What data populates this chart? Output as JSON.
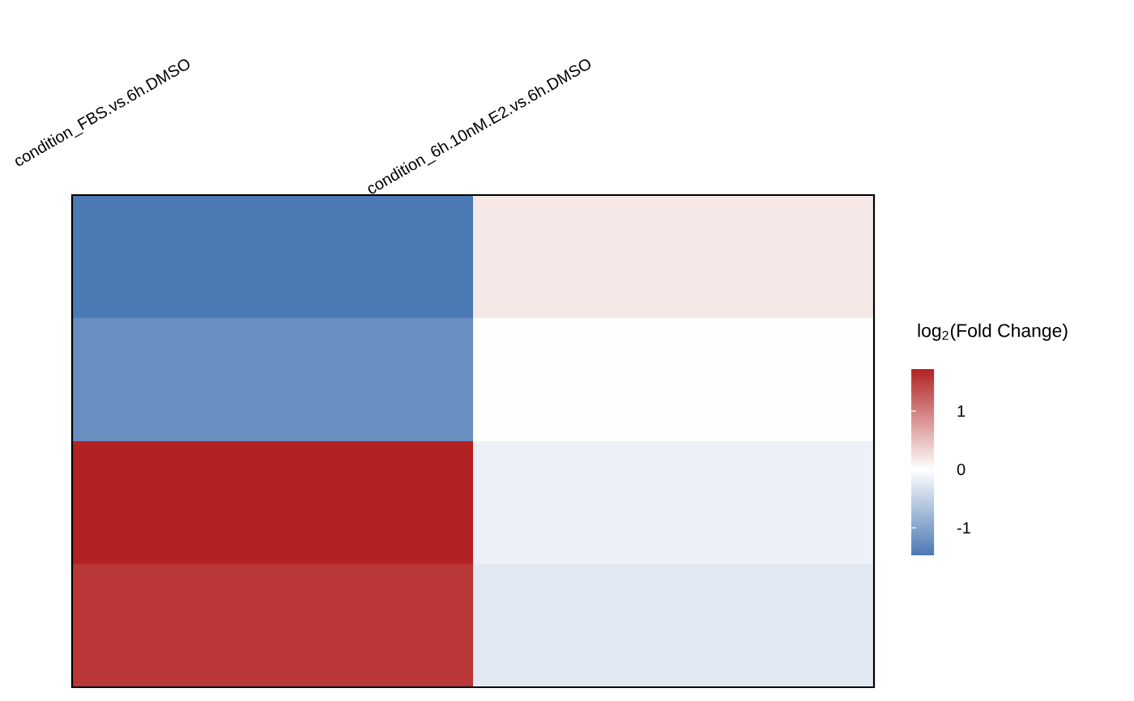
{
  "chart_data": {
    "type": "heatmap",
    "categories": [
      "condition_FBS.vs.6h.DMSO",
      "condition_6h.10nM.E2.vs.6h.DMSO"
    ],
    "y_categories": [
      null,
      null,
      null,
      null
    ],
    "cells": [
      [
        -1.47,
        0.18
      ],
      [
        -1.23,
        0.01
      ],
      [
        1.72,
        -0.15
      ],
      [
        1.56,
        -0.24
      ]
    ],
    "clabel": "log$_{2}$(Fold Change)",
    "clim": [
      -1.47,
      1.72
    ],
    "cticks": [
      -1,
      0,
      1
    ]
  }
}
